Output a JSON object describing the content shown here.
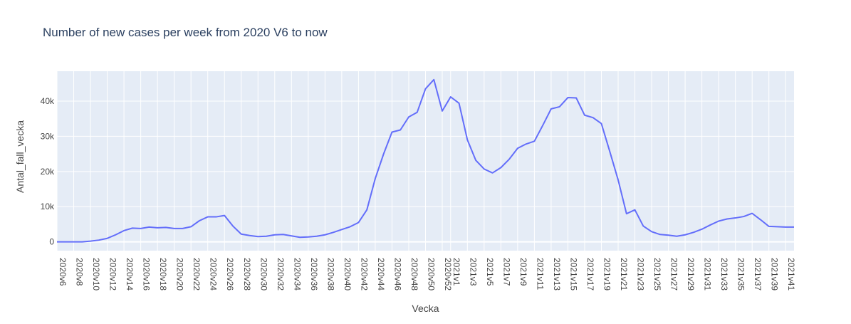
{
  "chart_data": {
    "type": "line",
    "title": "Number of new cases per week from 2020 V6 to now",
    "xlabel": "Vecka",
    "ylabel": "Antal_fall_vecka",
    "ylim": [
      -2500,
      48500
    ],
    "y_ticks": [
      0,
      10000,
      20000,
      30000,
      40000
    ],
    "y_tick_labels": [
      "0",
      "10k",
      "20k",
      "30k",
      "40k"
    ],
    "grid": true,
    "colors": {
      "line": "#636efa",
      "plot_bg": "#e5ecf6",
      "grid": "#ffffff",
      "text": "#444444",
      "title": "#2a3f5f"
    },
    "x_tick_labels": [
      "2020v6",
      "2020v8",
      "2020v10",
      "2020v12",
      "2020v14",
      "2020v16",
      "2020v18",
      "2020v20",
      "2020v22",
      "2020v24",
      "2020v26",
      "2020v28",
      "2020v30",
      "2020v32",
      "2020v34",
      "2020v36",
      "2020v38",
      "2020v40",
      "2020v42",
      "2020v44",
      "2020v46",
      "2020v48",
      "2020v50",
      "2020v52",
      "2021v1",
      "2021v3",
      "2021v5",
      "2021v7",
      "2021v9",
      "2021v11",
      "2021v13",
      "2021v15",
      "2021v17",
      "2021v19",
      "2021v21",
      "2021v23",
      "2021v25",
      "2021v27",
      "2021v29",
      "2021v31",
      "2021v33",
      "2021v35",
      "2021v37",
      "2021v39",
      "2021v41"
    ],
    "x_tick_positions": [
      0,
      2,
      4,
      6,
      8,
      10,
      12,
      14,
      16,
      18,
      20,
      22,
      24,
      26,
      28,
      30,
      32,
      34,
      36,
      38,
      40,
      42,
      44,
      46,
      47,
      49,
      51,
      53,
      55,
      57,
      59,
      61,
      63,
      65,
      67,
      69,
      71,
      73,
      75,
      77,
      79,
      81,
      83,
      85,
      87
    ],
    "series": [
      {
        "values": [
          0,
          0,
          0,
          0,
          200,
          500,
          1000,
          2000,
          3200,
          3900,
          3800,
          4200,
          4000,
          4100,
          3800,
          3800,
          4300,
          6000,
          7100,
          7100,
          7500,
          4500,
          2200,
          1800,
          1500,
          1600,
          2000,
          2100,
          1700,
          1300,
          1400,
          1600,
          2000,
          2700,
          3500,
          4300,
          5500,
          9100,
          18000,
          25000,
          31200,
          31800,
          35500,
          36800,
          43500,
          46100,
          37200,
          41200,
          39400,
          29000,
          23200,
          20700,
          19600,
          21100,
          23500,
          26600,
          27800,
          28600,
          33100,
          37800,
          38400,
          41000,
          40900,
          36000,
          35300,
          33600,
          25700,
          17600,
          8000,
          9100,
          4500,
          2900,
          2100,
          1900,
          1600,
          2000,
          2700,
          3600,
          4800,
          5900,
          6500,
          6800,
          7200,
          8100,
          6300,
          4400,
          4300,
          4200,
          4200
        ]
      }
    ]
  }
}
